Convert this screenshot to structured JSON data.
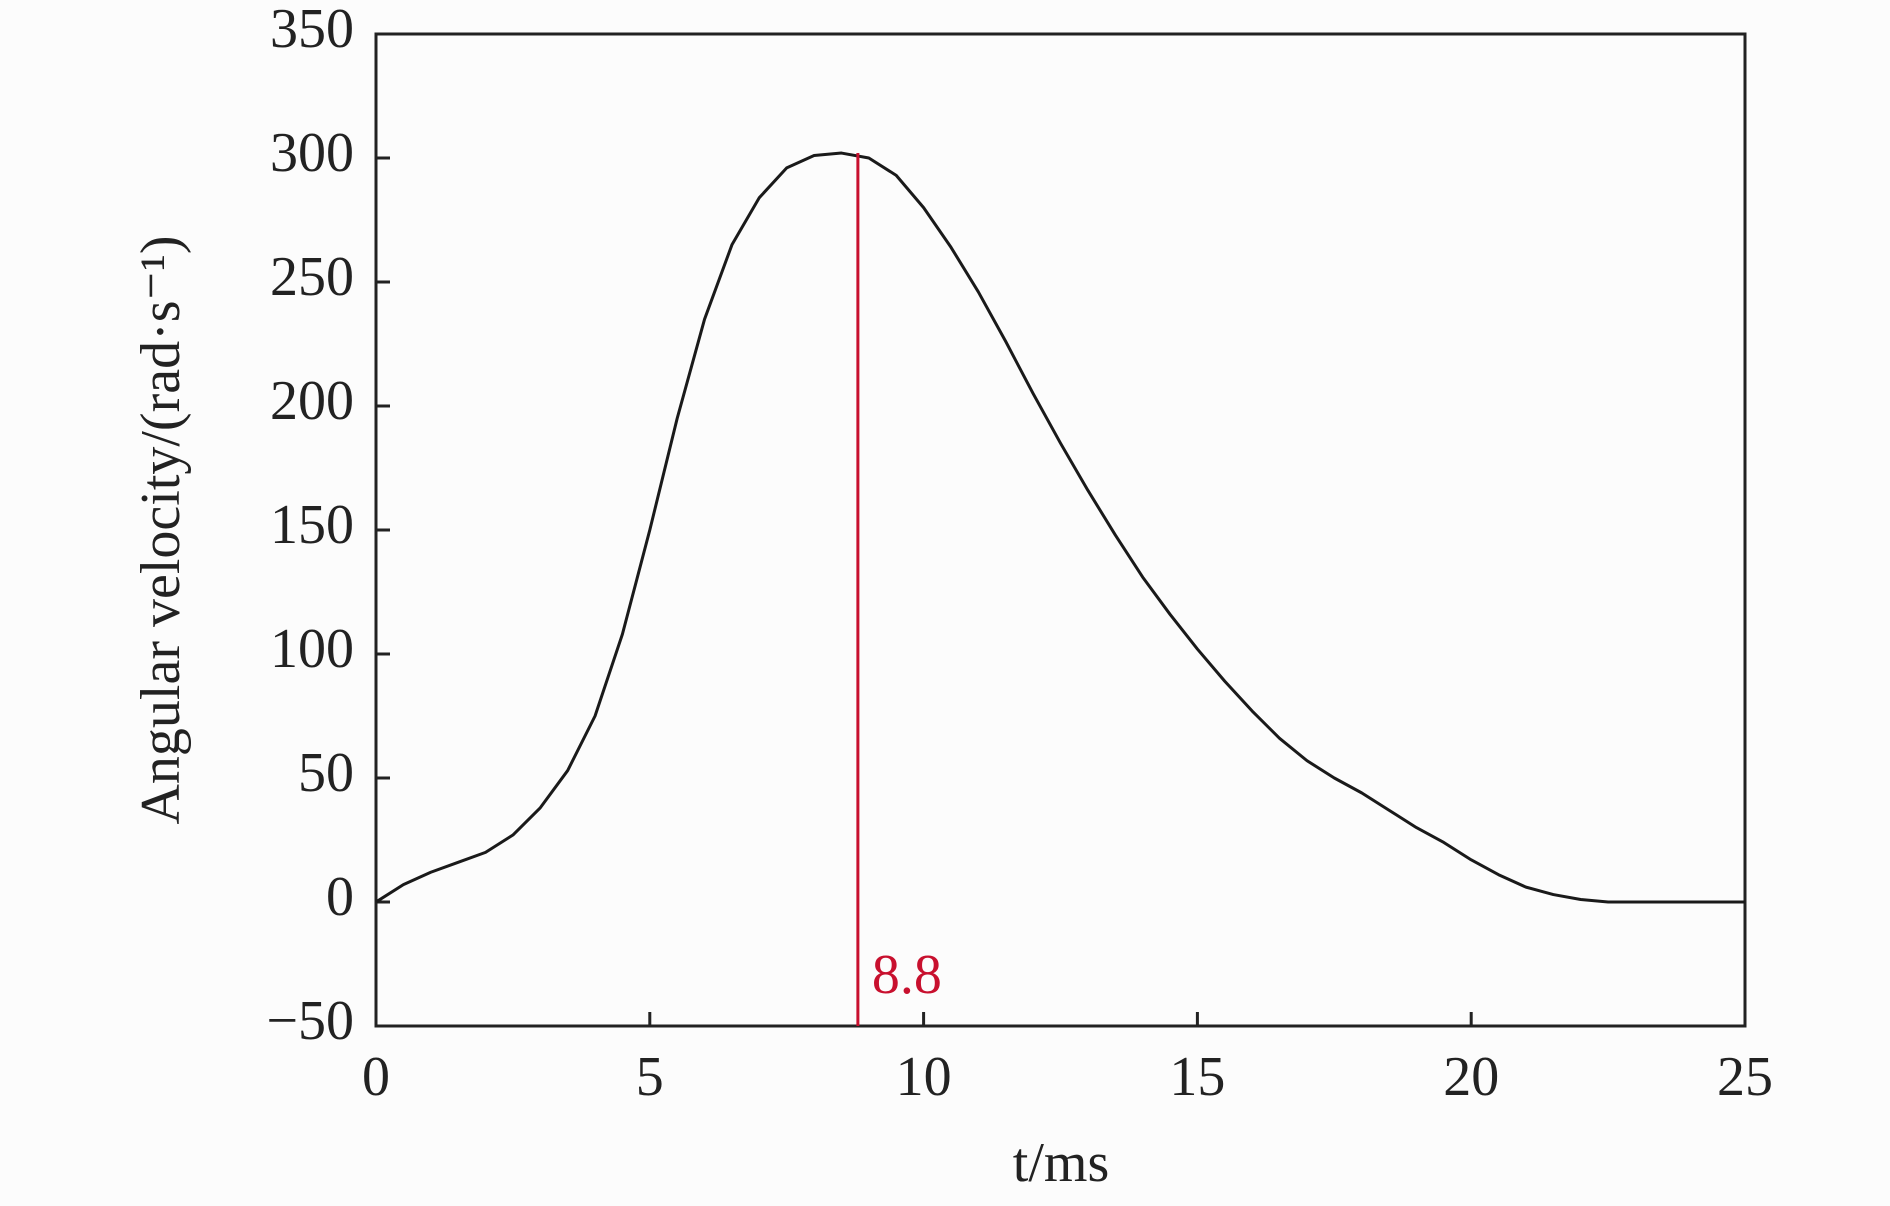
{
  "chart_data": {
    "type": "line",
    "x_label": "t/ms",
    "y_label": "Angular velocity/(rad·s⁻¹)",
    "x": [
      0,
      0.5,
      1,
      1.5,
      2,
      2.5,
      3,
      3.5,
      4,
      4.5,
      5,
      5.5,
      6,
      6.5,
      7,
      7.5,
      8,
      8.5,
      9,
      9.5,
      10,
      10.5,
      11,
      11.5,
      12,
      12.5,
      13,
      13.5,
      14,
      14.5,
      15,
      15.5,
      16,
      16.5,
      17,
      17.5,
      18,
      18.5,
      19,
      19.5,
      20,
      20.5,
      21,
      21.5,
      22,
      22.5,
      23,
      23.5,
      24,
      24.5,
      25
    ],
    "series": [
      {
        "name": "Angular velocity",
        "color": "#1a1a1a",
        "values": [
          0,
          7,
          12,
          16,
          20,
          27,
          38,
          53,
          75,
          108,
          150,
          195,
          235,
          265,
          284,
          296,
          301,
          302,
          300,
          293,
          280,
          264,
          246,
          226,
          205,
          185,
          166,
          148,
          131,
          116,
          102,
          89,
          77,
          66,
          57,
          50,
          44,
          37,
          30,
          24,
          17,
          11,
          6,
          3,
          1,
          0,
          0,
          0,
          0,
          0,
          0
        ]
      }
    ],
    "vline": {
      "x": 8.8,
      "color": "#c8102e"
    },
    "xlim": [
      0,
      25
    ],
    "xticks": [
      0,
      5,
      10,
      15,
      20,
      25
    ],
    "ylim": [
      -50,
      350
    ],
    "yticks": [
      {
        "value": -50,
        "label": "−50"
      },
      0,
      50,
      100,
      150,
      200,
      250,
      300,
      350
    ],
    "grid": false
  }
}
